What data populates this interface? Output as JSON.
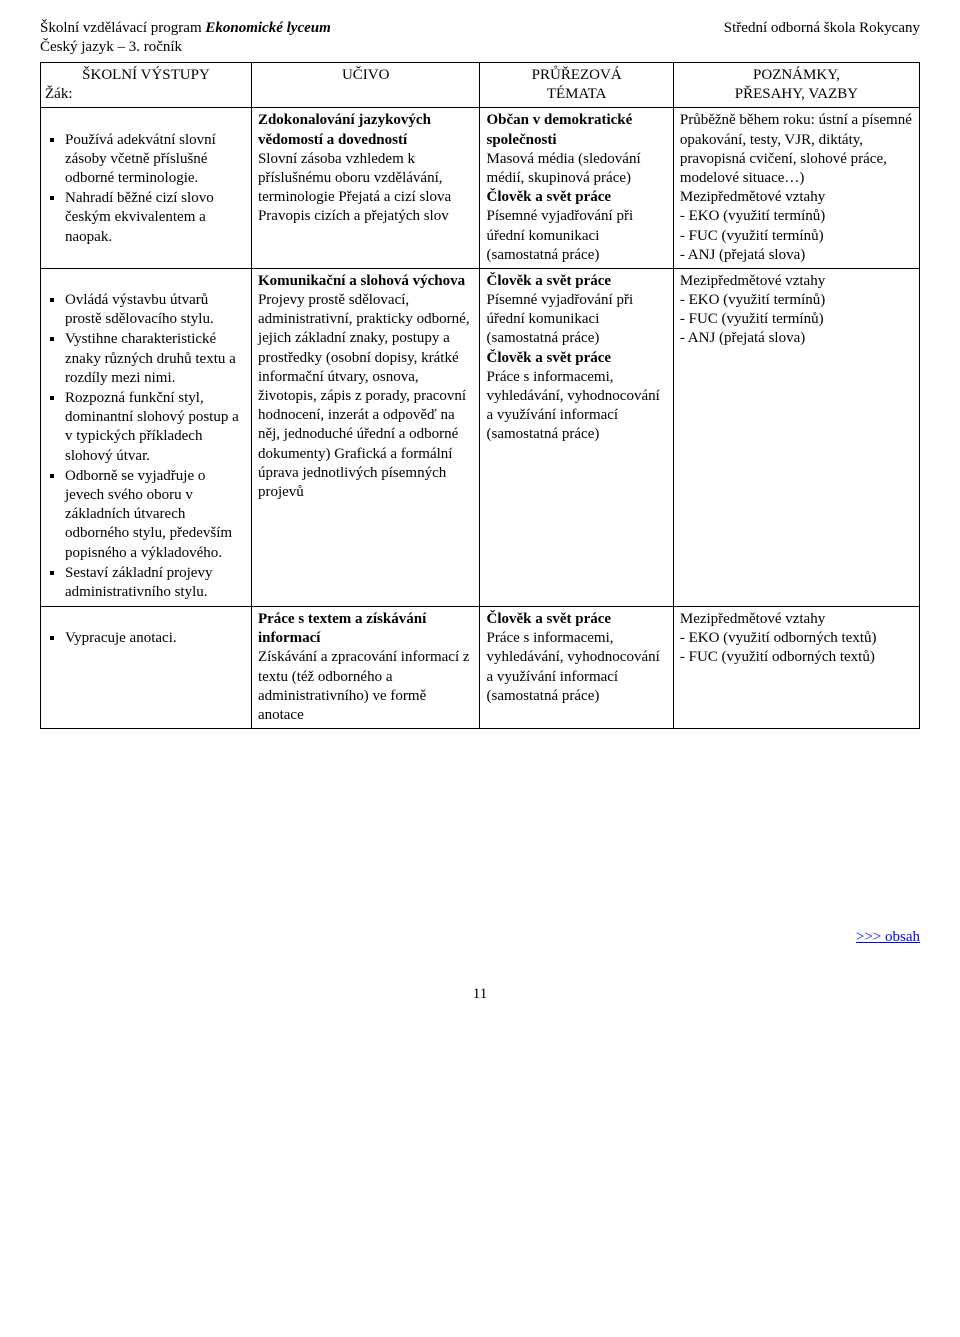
{
  "header": {
    "left_prefix": "Školní vzdělávací program ",
    "left_italic": "Ekonomické lyceum",
    "right": "Střední odborná škola Rokycany",
    "sub": "Český jazyk – 3. ročník"
  },
  "table": {
    "headers": {
      "c1_line1": "ŠKOLNÍ VÝSTUPY",
      "c1_line2": "Žák:",
      "c2": "UČIVO",
      "c3_line1": "PRŮŘEZOVÁ",
      "c3_line2": "TÉMATA",
      "c4_line1": "POZNÁMKY,",
      "c4_line2": "PŘESAHY, VAZBY"
    },
    "rows": [
      {
        "c1_items": [
          "Používá adekvátní slovní zásoby včetně příslušné odborné terminologie.",
          "Nahradí běžné cizí slovo českým ekvivalentem a naopak."
        ],
        "c2_bold": "Zdokonalování jazykových vědomostí a dovedností",
        "c2_text": "Slovní zásoba vzhledem k příslušnému oboru vzdělávání, terminologie Přejatá a cizí slova Pravopis cizích a přejatých slov",
        "c3_parts": [
          {
            "bold": "Občan v demokratické společnosti"
          },
          {
            "plain": "Masová média (sledování médií, skupinová práce)"
          },
          {
            "bold": "Člověk a svět práce"
          },
          {
            "plain": "Písemné vyjadřování při úřední komunikaci (samostatná práce)"
          }
        ],
        "c4_lines": [
          "Průběžně během roku: ústní a písemné opakování, testy, VJR, diktáty, pravopisná cvičení, slohové práce, modelové situace…)",
          "Mezipředmětové vztahy",
          "- EKO (využití termínů)",
          "- FUC (využití termínů)",
          "- ANJ (přejatá slova)"
        ]
      },
      {
        "c1_items": [
          "Ovládá výstavbu útvarů prostě sdělovacího stylu.",
          "Vystihne charakteristické znaky různých druhů textu a rozdíly mezi nimi.",
          "Rozpozná funkční styl, dominantní slohový postup a v typických příkladech slohový útvar.",
          "Odborně se vyjadřuje o jevech svého oboru v základních útvarech odborného stylu, především popisného a výkladového.",
          "Sestaví základní projevy administrativního stylu."
        ],
        "c2_bold": "Komunikační a slohová výchova",
        "c2_text": "Projevy prostě sdělovací, administrativní, prakticky odborné, jejich základní znaky, postupy a prostředky (osobní dopisy, krátké informační útvary, osnova, životopis, zápis z porady, pracovní hodnocení, inzerát a odpověď na něj, jednoduché úřední a odborné dokumenty) Grafická a formální úprava jednotlivých písemných projevů",
        "c3_parts": [
          {
            "bold": "Člověk a svět práce"
          },
          {
            "plain": "Písemné vyjadřování při úřední komunikaci (samostatná práce)"
          },
          {
            "bold": "Člověk a svět práce"
          },
          {
            "plain": "Práce s informacemi, vyhledávání, vyhodnocování a využívání informací (samostatná práce)"
          }
        ],
        "c4_lines": [
          "Mezipředmětové vztahy",
          "- EKO (využití termínů)",
          "- FUC (využití termínů)",
          "- ANJ (přejatá slova)"
        ]
      },
      {
        "c1_items": [
          "Vypracuje anotaci."
        ],
        "c2_bold": "Práce s textem a získávání informací",
        "c2_text": "Získávání a zpracování informací z textu (též odborného a administrativního) ve formě anotace",
        "c3_parts": [
          {
            "bold": "Člověk a svět práce"
          },
          {
            "plain": "Práce s informacemi, vyhledávání, vyhodnocování a využívání informací (samostatná práce)"
          }
        ],
        "c4_lines": [
          "Mezipředmětové vztahy",
          "- EKO (využití odborných textů)",
          "- FUC (využití odborných textů)"
        ]
      }
    ]
  },
  "link": ">>> obsah",
  "page_number": "11"
}
